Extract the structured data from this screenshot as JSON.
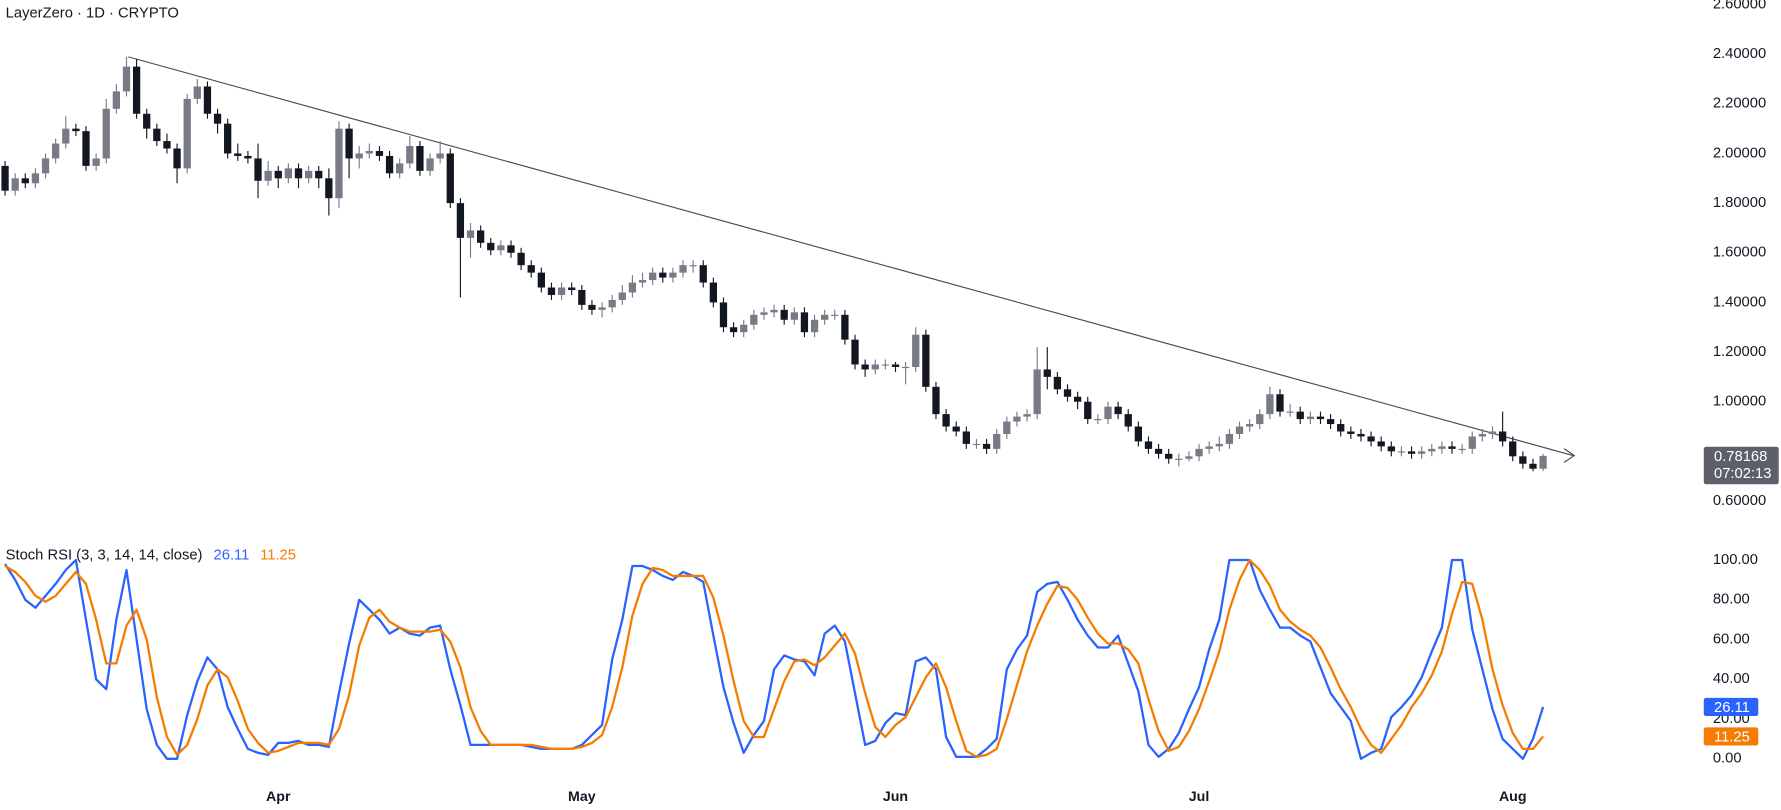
{
  "chart_data": [
    {
      "type": "candlestick",
      "title": "LayerZero · 1D · CRYPTO",
      "up_color": "#787b86",
      "down_color": "#131722",
      "open": [
        1.95,
        1.85,
        1.9,
        1.88,
        1.92,
        1.98,
        2.04,
        2.1,
        2.09,
        1.95,
        1.98,
        2.18,
        2.25,
        2.35,
        2.16,
        2.1,
        2.05,
        2.02,
        1.94,
        2.22,
        2.27,
        2.16,
        2.12,
        2.0,
        1.99,
        1.98,
        1.89,
        1.93,
        1.9,
        1.94,
        1.9,
        1.93,
        1.9,
        1.82,
        2.1,
        1.98,
        2.0,
        2.01,
        1.99,
        1.92,
        1.96,
        2.03,
        1.93,
        1.98,
        2.0,
        1.8,
        1.66,
        1.69,
        1.64,
        1.61,
        1.63,
        1.6,
        1.55,
        1.52,
        1.46,
        1.43,
        1.46,
        1.45,
        1.39,
        1.37,
        1.38,
        1.41,
        1.44,
        1.48,
        1.49,
        1.52,
        1.5,
        1.52,
        1.55,
        1.55,
        1.48,
        1.4,
        1.3,
        1.28,
        1.31,
        1.35,
        1.36,
        1.37,
        1.33,
        1.36,
        1.28,
        1.33,
        1.35,
        1.35,
        1.25,
        1.15,
        1.13,
        1.15,
        1.15,
        1.14,
        1.14,
        1.27,
        1.06,
        0.95,
        0.9,
        0.88,
        0.83,
        0.83,
        0.81,
        0.87,
        0.92,
        0.94,
        0.95,
        1.13,
        1.1,
        1.05,
        1.02,
        1.0,
        0.93,
        0.93,
        0.98,
        0.95,
        0.9,
        0.84,
        0.81,
        0.79,
        0.77,
        0.77,
        0.78,
        0.81,
        0.82,
        0.83,
        0.87,
        0.9,
        0.91,
        0.95,
        1.03,
        0.96,
        0.96,
        0.93,
        0.94,
        0.93,
        0.91,
        0.88,
        0.87,
        0.86,
        0.84,
        0.82,
        0.8,
        0.8,
        0.79,
        0.8,
        0.81,
        0.82,
        0.81,
        0.81,
        0.86,
        0.87,
        0.88,
        0.84,
        0.78,
        0.75,
        0.73
      ],
      "high": [
        1.97,
        1.92,
        1.92,
        1.94,
        2.0,
        2.06,
        2.15,
        2.12,
        2.11,
        2.0,
        2.22,
        2.28,
        2.39,
        2.38,
        2.18,
        2.12,
        2.08,
        2.04,
        2.24,
        2.3,
        2.29,
        2.18,
        2.14,
        2.04,
        2.01,
        2.04,
        1.97,
        1.95,
        1.96,
        1.96,
        1.95,
        1.95,
        1.94,
        2.13,
        2.12,
        2.03,
        2.04,
        2.03,
        2.01,
        1.98,
        2.07,
        2.05,
        2.0,
        2.05,
        2.02,
        1.82,
        1.72,
        1.71,
        1.66,
        1.65,
        1.65,
        1.62,
        1.57,
        1.54,
        1.48,
        1.48,
        1.48,
        1.47,
        1.41,
        1.4,
        1.43,
        1.47,
        1.51,
        1.52,
        1.54,
        1.54,
        1.54,
        1.57,
        1.57,
        1.57,
        1.5,
        1.42,
        1.32,
        1.33,
        1.37,
        1.38,
        1.39,
        1.39,
        1.38,
        1.38,
        1.35,
        1.37,
        1.37,
        1.37,
        1.27,
        1.17,
        1.17,
        1.17,
        1.16,
        1.16,
        1.3,
        1.29,
        1.08,
        0.97,
        0.92,
        0.9,
        0.85,
        0.85,
        0.89,
        0.94,
        0.96,
        0.97,
        1.22,
        1.22,
        1.12,
        1.07,
        1.04,
        1.02,
        0.95,
        1.0,
        1.0,
        0.97,
        0.92,
        0.86,
        0.83,
        0.81,
        0.79,
        0.8,
        0.83,
        0.84,
        0.86,
        0.89,
        0.92,
        0.93,
        0.97,
        1.06,
        1.05,
        0.99,
        0.98,
        0.96,
        0.96,
        0.95,
        0.93,
        0.9,
        0.89,
        0.88,
        0.86,
        0.84,
        0.82,
        0.82,
        0.82,
        0.83,
        0.84,
        0.84,
        0.83,
        0.88,
        0.89,
        0.9,
        0.96,
        0.86,
        0.8,
        0.77,
        0.79
      ],
      "low": [
        1.83,
        1.83,
        1.86,
        1.86,
        1.9,
        1.96,
        2.02,
        2.07,
        1.93,
        1.93,
        1.96,
        2.16,
        2.23,
        2.14,
        2.06,
        2.03,
        2.0,
        1.88,
        1.92,
        2.2,
        2.14,
        2.08,
        1.98,
        1.97,
        1.96,
        1.82,
        1.87,
        1.86,
        1.88,
        1.86,
        1.88,
        1.86,
        1.75,
        1.78,
        1.9,
        1.94,
        1.98,
        1.97,
        1.9,
        1.9,
        1.94,
        1.91,
        1.91,
        1.96,
        1.78,
        1.42,
        1.58,
        1.62,
        1.59,
        1.59,
        1.58,
        1.53,
        1.5,
        1.44,
        1.41,
        1.41,
        1.43,
        1.37,
        1.35,
        1.34,
        1.36,
        1.39,
        1.42,
        1.46,
        1.47,
        1.48,
        1.48,
        1.5,
        1.52,
        1.46,
        1.38,
        1.28,
        1.26,
        1.26,
        1.29,
        1.33,
        1.34,
        1.31,
        1.31,
        1.26,
        1.26,
        1.31,
        1.33,
        1.23,
        1.13,
        1.1,
        1.11,
        1.13,
        1.12,
        1.07,
        1.12,
        1.04,
        0.93,
        0.88,
        0.86,
        0.81,
        0.81,
        0.79,
        0.79,
        0.85,
        0.9,
        0.92,
        0.93,
        1.05,
        1.03,
        1.0,
        0.97,
        0.91,
        0.91,
        0.91,
        0.93,
        0.88,
        0.82,
        0.79,
        0.77,
        0.75,
        0.74,
        0.76,
        0.76,
        0.79,
        0.8,
        0.81,
        0.85,
        0.88,
        0.89,
        0.93,
        0.94,
        0.94,
        0.91,
        0.91,
        0.91,
        0.89,
        0.86,
        0.85,
        0.84,
        0.82,
        0.8,
        0.78,
        0.78,
        0.77,
        0.77,
        0.78,
        0.79,
        0.79,
        0.79,
        0.79,
        0.84,
        0.85,
        0.82,
        0.76,
        0.73,
        0.72,
        0.72
      ],
      "close": [
        1.85,
        1.9,
        1.88,
        1.92,
        1.98,
        2.04,
        2.1,
        2.09,
        1.95,
        1.98,
        2.18,
        2.25,
        2.35,
        2.16,
        2.1,
        2.05,
        2.02,
        1.94,
        2.22,
        2.27,
        2.16,
        2.12,
        2.0,
        1.99,
        1.98,
        1.89,
        1.93,
        1.9,
        1.94,
        1.9,
        1.93,
        1.9,
        1.82,
        2.1,
        1.98,
        2.0,
        2.01,
        1.99,
        1.92,
        1.96,
        2.03,
        1.93,
        1.98,
        2.0,
        1.8,
        1.66,
        1.69,
        1.64,
        1.61,
        1.63,
        1.6,
        1.55,
        1.52,
        1.46,
        1.43,
        1.46,
        1.45,
        1.39,
        1.37,
        1.38,
        1.41,
        1.44,
        1.48,
        1.49,
        1.52,
        1.5,
        1.52,
        1.55,
        1.55,
        1.48,
        1.4,
        1.3,
        1.28,
        1.31,
        1.35,
        1.36,
        1.37,
        1.33,
        1.36,
        1.28,
        1.33,
        1.35,
        1.35,
        1.25,
        1.15,
        1.13,
        1.15,
        1.15,
        1.14,
        1.14,
        1.27,
        1.06,
        0.95,
        0.9,
        0.88,
        0.83,
        0.83,
        0.81,
        0.87,
        0.92,
        0.94,
        0.95,
        1.13,
        1.1,
        1.05,
        1.02,
        1.0,
        0.93,
        0.93,
        0.98,
        0.95,
        0.9,
        0.84,
        0.81,
        0.79,
        0.77,
        0.77,
        0.78,
        0.81,
        0.82,
        0.83,
        0.87,
        0.9,
        0.91,
        0.95,
        1.03,
        0.96,
        0.96,
        0.93,
        0.94,
        0.93,
        0.91,
        0.88,
        0.87,
        0.86,
        0.84,
        0.82,
        0.8,
        0.8,
        0.79,
        0.8,
        0.81,
        0.82,
        0.81,
        0.81,
        0.86,
        0.87,
        0.88,
        0.84,
        0.78,
        0.75,
        0.73,
        0.78168
      ],
      "ylim": [
        0.536,
        2.618
      ],
      "yticks": [
        {
          "value": 2.6,
          "label": "2.60000"
        },
        {
          "value": 2.4,
          "label": "2.40000"
        },
        {
          "value": 2.2,
          "label": "2.20000"
        },
        {
          "value": 2.0,
          "label": "2.00000"
        },
        {
          "value": 1.8,
          "label": "1.80000"
        },
        {
          "value": 1.6,
          "label": "1.60000"
        },
        {
          "value": 1.4,
          "label": "1.40000"
        },
        {
          "value": 1.2,
          "label": "1.20000"
        },
        {
          "value": 1.0,
          "label": "1.00000"
        },
        {
          "value": 0.6,
          "label": "0.60000"
        }
      ],
      "last_price": 0.78168,
      "countdown": "07:02:13",
      "last_price_color": "#5d606b"
    },
    {
      "type": "line",
      "title": "Stoch RSI (3, 3, 14, 14, close)",
      "categories": [
        null,
        null,
        null,
        null,
        null,
        null,
        null,
        null,
        null,
        null,
        null,
        null,
        null,
        null,
        null,
        null,
        null,
        null,
        null,
        null,
        null,
        null,
        null,
        null,
        null,
        null,
        null,
        "Apr",
        null,
        null,
        null,
        null,
        null,
        null,
        null,
        null,
        null,
        null,
        null,
        null,
        null,
        null,
        null,
        null,
        null,
        null,
        null,
        null,
        null,
        null,
        null,
        null,
        null,
        null,
        null,
        null,
        null,
        "May",
        null,
        null,
        null,
        null,
        null,
        null,
        null,
        null,
        null,
        null,
        null,
        null,
        null,
        null,
        null,
        null,
        null,
        null,
        null,
        null,
        null,
        null,
        null,
        null,
        null,
        null,
        null,
        null,
        null,
        null,
        "Jun",
        null,
        null,
        null,
        null,
        null,
        null,
        null,
        null,
        null,
        null,
        null,
        null,
        null,
        null,
        null,
        null,
        null,
        null,
        null,
        null,
        null,
        null,
        null,
        null,
        null,
        null,
        null,
        null,
        null,
        "Jul",
        null,
        null,
        null,
        null,
        null,
        null,
        null,
        null,
        null,
        null,
        null,
        null,
        null,
        null,
        null,
        null,
        null,
        null,
        null,
        null,
        null,
        null,
        null,
        null,
        null,
        null,
        null,
        null,
        null,
        null,
        "Aug",
        null,
        null,
        null
      ],
      "series": [
        {
          "color": "#2962ff",
          "values": [
            98,
            90,
            80,
            76,
            82,
            88,
            95,
            100,
            70,
            40,
            35,
            70,
            95,
            60,
            25,
            7,
            0,
            0,
            22,
            39,
            51,
            45,
            26,
            15,
            5,
            3,
            2,
            8,
            8,
            9,
            7,
            7,
            6,
            33,
            58,
            80,
            75,
            70,
            63,
            66,
            63,
            62,
            66,
            67,
            45,
            27,
            7,
            7,
            7,
            7,
            7,
            7,
            6,
            5,
            5,
            5,
            5,
            7,
            12,
            17,
            50,
            70,
            97,
            97,
            95,
            92,
            90,
            94,
            92,
            89,
            62,
            36,
            18,
            3,
            12,
            19,
            45,
            52,
            50,
            49,
            42,
            63,
            67,
            59,
            33,
            7,
            9,
            18,
            23,
            22,
            49,
            51,
            45,
            11,
            1,
            1,
            1,
            5,
            10,
            45,
            55,
            62,
            84,
            88,
            89,
            80,
            70,
            62,
            56,
            56,
            62,
            48,
            34,
            7,
            1,
            5,
            13,
            25,
            36,
            55,
            70,
            100,
            100,
            100,
            85,
            75,
            66,
            66,
            62,
            59,
            46,
            33,
            26,
            19,
            0,
            3,
            5,
            21,
            26,
            32,
            41,
            54,
            66,
            100,
            100,
            65,
            45,
            25,
            10,
            5,
            0,
            10,
            26.11
          ]
        },
        {
          "color": "#f57c00",
          "values": [
            97,
            94,
            89,
            82,
            79,
            82,
            88,
            94,
            88,
            70,
            48,
            48,
            67,
            75,
            60,
            31,
            11,
            2,
            7,
            20,
            37,
            45,
            41,
            29,
            15,
            8,
            3,
            4,
            6,
            8,
            8,
            8,
            7,
            15,
            32,
            57,
            71,
            75,
            69,
            66,
            64,
            64,
            64,
            65,
            59,
            46,
            26,
            14,
            7,
            7,
            7,
            7,
            7,
            6,
            5,
            5,
            5,
            6,
            8,
            12,
            26,
            46,
            72,
            88,
            96,
            95,
            92,
            92,
            92,
            92,
            81,
            62,
            39,
            19,
            11,
            11,
            25,
            39,
            49,
            50,
            47,
            51,
            57,
            63,
            53,
            33,
            16,
            11,
            17,
            21,
            31,
            41,
            48,
            36,
            19,
            4,
            1,
            2,
            5,
            20,
            37,
            54,
            67,
            78,
            87,
            86,
            80,
            71,
            63,
            58,
            58,
            55,
            48,
            30,
            14,
            4,
            6,
            14,
            25,
            39,
            54,
            75,
            90,
            100,
            95,
            87,
            75,
            69,
            65,
            62,
            56,
            46,
            35,
            26,
            15,
            7,
            3,
            10,
            17,
            26,
            33,
            42,
            54,
            73,
            89,
            88,
            70,
            45,
            27,
            13,
            5,
            5,
            11.25
          ]
        }
      ],
      "ylim": [
        -7,
        107
      ],
      "yticks": [
        {
          "value": 100,
          "label": "100.00"
        },
        {
          "value": 80,
          "label": "80.00"
        },
        {
          "value": 60,
          "label": "60.00"
        },
        {
          "value": 40,
          "label": "40.00"
        },
        {
          "value": 20,
          "label": "20.00"
        },
        {
          "value": 0,
          "label": "0.00"
        }
      ]
    }
  ]
}
